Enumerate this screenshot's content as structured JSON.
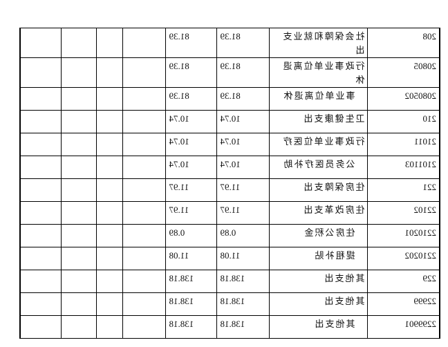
{
  "rows": [
    {
      "code": "208",
      "name": "社会保障和就业支出",
      "v1": "81.39",
      "v2": "81.39",
      "indent": false,
      "tall": true
    },
    {
      "code": "20805",
      "name": "行政事业单位离退休",
      "v1": "81.39",
      "v2": "81.39",
      "indent": false,
      "tall": true
    },
    {
      "code": "2080502",
      "name": "事业单位离退休",
      "v1": "81.39",
      "v2": "81.39",
      "indent": true
    },
    {
      "code": "210",
      "name": "卫生健康支出",
      "v1": "10.74",
      "v2": "10.74",
      "indent": false
    },
    {
      "code": "21011",
      "name": "行政事业单位医疗",
      "v1": "10.74",
      "v2": "10.74",
      "indent": false
    },
    {
      "code": "2101103",
      "name": "公务员医疗补助",
      "v1": "10.74",
      "v2": "10.74",
      "indent": true
    },
    {
      "code": "221",
      "name": "住房保障支出",
      "v1": "11.97",
      "v2": "11.97",
      "indent": false
    },
    {
      "code": "22102",
      "name": "住房改革支出",
      "v1": "11.97",
      "v2": "11.97",
      "indent": false
    },
    {
      "code": "2210201",
      "name": "住房公积金",
      "v1": "0.89",
      "v2": "0.89",
      "indent": true
    },
    {
      "code": "2210202",
      "name": "提租补贴",
      "v1": "11.08",
      "v2": "11.08",
      "indent": true
    },
    {
      "code": "229",
      "name": "其他支出",
      "v1": "138.18",
      "v2": "138.18",
      "indent": false
    },
    {
      "code": "22999",
      "name": "其他支出",
      "v1": "138.18",
      "v2": "138.18",
      "indent": false
    },
    {
      "code": "2299901",
      "name": "其他支出",
      "v1": "138.18",
      "v2": "138.18",
      "indent": true
    }
  ]
}
